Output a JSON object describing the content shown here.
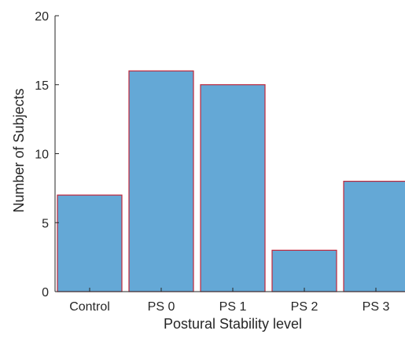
{
  "chart_data": {
    "type": "bar",
    "categories": [
      "Control",
      "PS 0",
      "PS 1",
      "PS 2",
      "PS 3"
    ],
    "values": [
      7,
      16,
      15,
      3,
      8
    ],
    "title": "",
    "xlabel": "Postural Stability level",
    "ylabel": "Number of Subjects",
    "ylim": [
      0,
      20
    ],
    "yticks": [
      0,
      5,
      10,
      15,
      20
    ],
    "grid": false,
    "bar_color": "#64a8d6",
    "bar_edge_color": "#c0263a",
    "axis_color": "#262626"
  }
}
